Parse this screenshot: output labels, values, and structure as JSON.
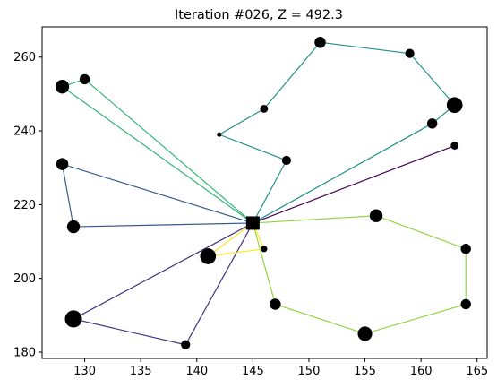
{
  "chart_data": {
    "type": "scatter",
    "title": "Iteration #026, Z = 492.3",
    "xlabel": "",
    "ylabel": "",
    "xlim": [
      126.2,
      165.9
    ],
    "ylim": [
      178.3,
      268.2
    ],
    "xticks": [
      130,
      135,
      140,
      145,
      150,
      155,
      160,
      165
    ],
    "yticks": [
      180,
      200,
      220,
      240,
      260
    ],
    "grid": false,
    "depot": {
      "x": 145,
      "y": 215
    },
    "customers": [
      {
        "id": 1,
        "x": 128,
        "y": 252,
        "demand": 9
      },
      {
        "id": 2,
        "x": 130,
        "y": 254,
        "demand": 5
      },
      {
        "id": 3,
        "x": 128,
        "y": 231,
        "demand": 7
      },
      {
        "id": 4,
        "x": 129,
        "y": 214,
        "demand": 8
      },
      {
        "id": 5,
        "x": 142,
        "y": 239,
        "demand": 1
      },
      {
        "id": 6,
        "x": 146,
        "y": 246,
        "demand": 3
      },
      {
        "id": 7,
        "x": 151,
        "y": 264,
        "demand": 6
      },
      {
        "id": 8,
        "x": 159,
        "y": 261,
        "demand": 4
      },
      {
        "id": 9,
        "x": 163,
        "y": 247,
        "demand": 12
      },
      {
        "id": 10,
        "x": 161,
        "y": 242,
        "demand": 5
      },
      {
        "id": 11,
        "x": 148,
        "y": 232,
        "demand": 4
      },
      {
        "id": 12,
        "x": 163,
        "y": 236,
        "demand": 3
      },
      {
        "id": 13,
        "x": 156,
        "y": 217,
        "demand": 8
      },
      {
        "id": 14,
        "x": 164,
        "y": 208,
        "demand": 5
      },
      {
        "id": 15,
        "x": 164,
        "y": 193,
        "demand": 5
      },
      {
        "id": 16,
        "x": 155,
        "y": 185,
        "demand": 10
      },
      {
        "id": 17,
        "x": 147,
        "y": 193,
        "demand": 6
      },
      {
        "id": 18,
        "x": 146,
        "y": 208,
        "demand": 2
      },
      {
        "id": 19,
        "x": 141,
        "y": 206,
        "demand": 12
      },
      {
        "id": 20,
        "x": 129,
        "y": 189,
        "demand": 14
      },
      {
        "id": 21,
        "x": 139,
        "y": 182,
        "demand": 4
      }
    ],
    "routes": [
      {
        "color": "#440154",
        "stops": [
          12
        ]
      },
      {
        "color": "#46327e",
        "stops": [
          20,
          21
        ]
      },
      {
        "color": "#365c8d",
        "stops": [
          4,
          3
        ]
      },
      {
        "color": "#21918c",
        "stops": [
          11,
          5,
          6,
          7,
          8,
          9,
          10
        ]
      },
      {
        "color": "#35b779",
        "stops": [
          1,
          2
        ]
      },
      {
        "color": "#90d743",
        "stops": [
          13,
          14,
          15,
          16,
          17
        ]
      },
      {
        "color": "#fde725",
        "stops": [
          19,
          18
        ]
      }
    ]
  }
}
